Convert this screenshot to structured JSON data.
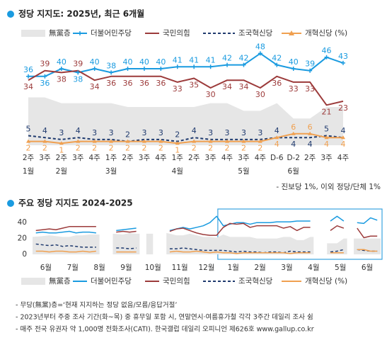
{
  "chart_data": [
    {
      "type": "line",
      "title": "정당 지지도: 2025년, 최근 6개월",
      "note": "- 진보당 1%, 이외 정당/단체 1%",
      "categories": [
        "2주",
        "3주",
        "2주",
        "3주",
        "4주",
        "1주",
        "2주",
        "3주",
        "4주",
        "1주",
        "2주",
        "3주",
        "4주",
        "3주",
        "4주",
        "D-6",
        "D-2",
        "2주",
        "3주",
        "4주"
      ],
      "x_groups": [
        {
          "label": "1월",
          "start": 0
        },
        {
          "label": "2월",
          "start": 2
        },
        {
          "label": "3월",
          "start": 5
        },
        {
          "label": "4월",
          "start": 9
        },
        {
          "label": "5월",
          "start": 13
        },
        {
          "label": "6월",
          "start": 16
        }
      ],
      "ylim": [
        0,
        50
      ],
      "series": [
        {
          "name": "無黨층",
          "color": "#e6e6e6",
          "style": "area",
          "values": [
            25,
            25,
            22,
            22,
            22,
            22,
            20,
            20,
            20,
            20,
            20,
            22,
            22,
            18,
            18,
            22,
            14,
            14,
            20,
            20
          ]
        },
        {
          "name": "더불어민주당",
          "color": "#1a9be0",
          "style": "solid",
          "marker": "plus",
          "labels": true,
          "values": [
            36,
            36,
            40,
            38,
            40,
            38,
            40,
            40,
            40,
            41,
            41,
            41,
            42,
            42,
            48,
            42,
            40,
            39,
            46,
            43
          ]
        },
        {
          "name": "국민의힘",
          "color": "#9c3b3b",
          "style": "solid",
          "labels": true,
          "values": [
            34,
            39,
            38,
            39,
            34,
            36,
            36,
            36,
            36,
            33,
            35,
            30,
            34,
            34,
            30,
            36,
            33,
            33,
            21,
            23
          ]
        },
        {
          "name": "조국혁신당",
          "color": "#1f3a6e",
          "style": "dashed",
          "labels": true,
          "values": [
            5,
            4,
            3,
            4,
            3,
            3,
            2,
            3,
            3,
            2,
            4,
            3,
            3,
            3,
            3,
            4,
            4,
            4,
            5,
            4
          ]
        },
        {
          "name": "개혁신당 (%)",
          "color": "#f0a050",
          "style": "solid",
          "marker": "triangle",
          "labels": true,
          "values": [
            2,
            2,
            1,
            2,
            2,
            2,
            2,
            2,
            2,
            1,
            2,
            2,
            2,
            2,
            2,
            4,
            6,
            6,
            4,
            4
          ]
        }
      ]
    },
    {
      "type": "line",
      "title": "주요 정당 지지도 2024-2025",
      "categories": [
        "6월",
        null,
        null,
        null,
        "7월",
        null,
        null,
        null,
        "8월",
        null,
        null,
        null,
        "9월",
        null,
        null,
        null,
        "10월",
        null,
        null,
        null,
        "11월",
        null,
        null,
        null,
        "12월",
        null,
        null,
        null,
        "1월",
        null,
        null,
        null,
        "2월",
        null,
        null,
        null,
        "3월",
        null,
        null,
        null,
        "4월",
        null,
        null,
        null,
        "5월",
        null,
        null,
        null,
        "6월",
        null,
        null,
        null
      ],
      "ylim": [
        0,
        50
      ],
      "yticks": [
        0,
        20,
        40
      ],
      "series": [
        {
          "name": "無黨층",
          "color": "#e6e6e6",
          "style": "area",
          "values": [
            22,
            23,
            24,
            23,
            22,
            22,
            24,
            24,
            25,
            25,
            null,
            null,
            26,
            25,
            27,
            26,
            null,
            26,
            null,
            null,
            27,
            24,
            24,
            26,
            24,
            22,
            22,
            21,
            25,
            22,
            22,
            22,
            22,
            20,
            20,
            20,
            20,
            22,
            22,
            18,
            18,
            22,
            null,
            null,
            14,
            14,
            20,
            null,
            20,
            20,
            20,
            20
          ]
        },
        {
          "name": "더불어민주당",
          "color": "#1a9be0",
          "style": "solid",
          "values": [
            27,
            28,
            27,
            27,
            28,
            29,
            27,
            28,
            28,
            27,
            null,
            null,
            30,
            31,
            32,
            33,
            null,
            31,
            null,
            null,
            30,
            32,
            34,
            32,
            34,
            36,
            40,
            48,
            36,
            38,
            40,
            40,
            38,
            40,
            40,
            40,
            41,
            41,
            41,
            42,
            42,
            42,
            null,
            null,
            42,
            48,
            42,
            null,
            40,
            39,
            46,
            43
          ]
        },
        {
          "name": "국민의힘",
          "color": "#9c3b3b",
          "style": "solid",
          "values": [
            30,
            31,
            32,
            31,
            33,
            35,
            35,
            35,
            35,
            35,
            null,
            null,
            28,
            29,
            28,
            29,
            null,
            30,
            null,
            null,
            29,
            32,
            33,
            30,
            27,
            25,
            24,
            24,
            34,
            39,
            38,
            39,
            34,
            36,
            36,
            36,
            36,
            33,
            35,
            30,
            34,
            34,
            null,
            null,
            30,
            36,
            33,
            null,
            33,
            21,
            23,
            23
          ]
        },
        {
          "name": "조국혁신당",
          "color": "#1f3a6e",
          "style": "dashed",
          "values": [
            13,
            12,
            11,
            12,
            10,
            11,
            10,
            9,
            9,
            9,
            null,
            null,
            8,
            8,
            7,
            8,
            null,
            7,
            null,
            null,
            7,
            7,
            8,
            7,
            6,
            5,
            5,
            5,
            5,
            4,
            3,
            4,
            3,
            3,
            2,
            3,
            3,
            2,
            4,
            3,
            3,
            3,
            null,
            null,
            3,
            4,
            6,
            null,
            6,
            5,
            4,
            4
          ]
        },
        {
          "name": "개혁신당 (%)",
          "color": "#f0a050",
          "style": "solid",
          "values": [
            4,
            4,
            3,
            4,
            4,
            3,
            3,
            4,
            3,
            4,
            null,
            null,
            3,
            3,
            3,
            3,
            null,
            3,
            null,
            null,
            3,
            4,
            3,
            3,
            4,
            3,
            2,
            3,
            2,
            2,
            1,
            2,
            2,
            2,
            2,
            2,
            2,
            2,
            1,
            2,
            2,
            2,
            null,
            null,
            2,
            2,
            2,
            null,
            6,
            6,
            4,
            4
          ]
        }
      ]
    }
  ],
  "footnotes": [
    "- 무당(無黨)층=‘현재 지지하는 정당 없음/모름/응답거절’",
    "- 2023년부터 주중 조사 기간(화~목) 중 휴무일 포함 시, 연말연시·여름휴가철 각각 3주간 데일리 조사 쉼",
    "- 매주 전국 유권자 약 1,000명 전화조사(CATI). 한국갤럽 데일리 오피니언 제626호 www.gallup.co.kr"
  ]
}
